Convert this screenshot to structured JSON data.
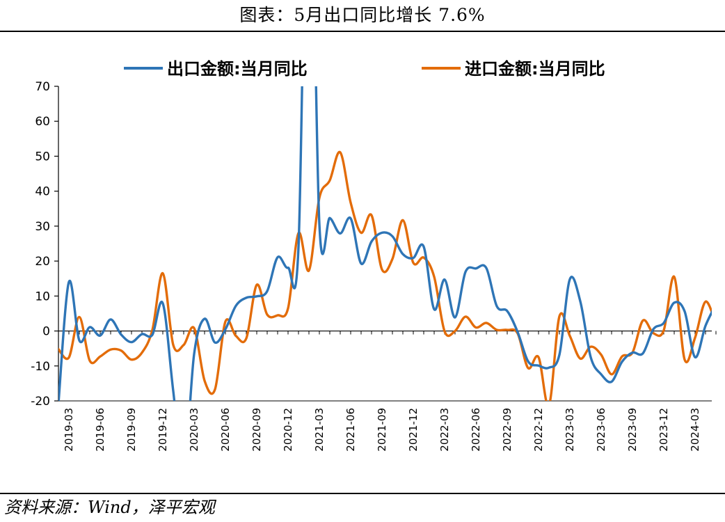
{
  "page": {
    "title": "图表：5月出口同比增长 7.6%",
    "source": "资料来源：Wind，泽平宏观"
  },
  "chart_data": {
    "type": "line",
    "title": "图表：5月出口同比增长 7.6%",
    "xlabel": "",
    "ylabel": "",
    "ylim": [
      -20,
      70
    ],
    "yticks": [
      -20,
      -10,
      0,
      10,
      20,
      30,
      40,
      50,
      60,
      70
    ],
    "grid": false,
    "legend_position": "top",
    "x": [
      "2019-02",
      "2019-03",
      "2019-04",
      "2019-05",
      "2019-06",
      "2019-07",
      "2019-08",
      "2019-09",
      "2019-10",
      "2019-11",
      "2019-12",
      "2020-01",
      "2020-02",
      "2020-03",
      "2020-04",
      "2020-05",
      "2020-06",
      "2020-07",
      "2020-08",
      "2020-09",
      "2020-10",
      "2020-11",
      "2020-12",
      "2021-01",
      "2021-02",
      "2021-03",
      "2021-04",
      "2021-05",
      "2021-06",
      "2021-07",
      "2021-08",
      "2021-09",
      "2021-10",
      "2021-11",
      "2021-12",
      "2022-01",
      "2022-02",
      "2022-03",
      "2022-04",
      "2022-05",
      "2022-06",
      "2022-07",
      "2022-08",
      "2022-09",
      "2022-10",
      "2022-11",
      "2022-12",
      "2023-01",
      "2023-02",
      "2023-03",
      "2023-04",
      "2023-05",
      "2023-06",
      "2023-07",
      "2023-08",
      "2023-09",
      "2023-10",
      "2023-11",
      "2023-12",
      "2024-01",
      "2024-02",
      "2024-03",
      "2024-04",
      "2024-05"
    ],
    "xticks": [
      "2019-03",
      "2019-06",
      "2019-09",
      "2019-12",
      "2020-03",
      "2020-06",
      "2020-09",
      "2020-12",
      "2021-03",
      "2021-06",
      "2021-09",
      "2021-12",
      "2022-03",
      "2022-06",
      "2022-09",
      "2022-12",
      "2023-03",
      "2023-06",
      "2023-09",
      "2023-12",
      "2024-03"
    ],
    "series": [
      {
        "name": "出口金额:当月同比",
        "color": "#2E75B6",
        "values": [
          -20.7,
          14.0,
          -2.7,
          1.1,
          -1.3,
          3.3,
          -1.0,
          -3.2,
          -0.9,
          -1.1,
          7.9,
          -17.2,
          -40.6,
          -6.6,
          3.5,
          -3.3,
          0.5,
          7.2,
          9.5,
          9.9,
          11.4,
          21.1,
          18.1,
          24.0,
          154.9,
          30.6,
          32.3,
          27.9,
          32.2,
          19.3,
          25.6,
          28.1,
          27.1,
          22.0,
          20.9,
          24.1,
          6.2,
          14.7,
          3.9,
          16.9,
          17.9,
          18.0,
          7.1,
          5.7,
          -0.3,
          -8.7,
          -9.9,
          -10.5,
          -6.8,
          14.8,
          8.5,
          -7.5,
          -12.4,
          -14.5,
          -8.8,
          -6.2,
          -6.4,
          0.5,
          2.3,
          8.1,
          5.6,
          -7.5,
          1.5,
          7.6
        ]
      },
      {
        "name": "进口金额:当月同比",
        "color": "#E36C09",
        "values": [
          -5.2,
          -7.6,
          4.0,
          -8.5,
          -7.3,
          -5.3,
          -5.6,
          -8.2,
          -6.2,
          0.3,
          16.5,
          -4.0,
          -4.0,
          0.8,
          -14.2,
          -16.7,
          2.7,
          -1.4,
          -2.1,
          13.2,
          4.7,
          4.5,
          6.5,
          28.0,
          17.3,
          38.1,
          43.1,
          51.1,
          36.7,
          28.1,
          33.1,
          17.6,
          20.6,
          31.7,
          19.5,
          21.0,
          15.5,
          -0.1,
          0.0,
          4.1,
          1.0,
          2.3,
          0.3,
          0.3,
          -0.7,
          -10.6,
          -7.5,
          -21.3,
          4.2,
          -1.4,
          -7.9,
          -4.5,
          -6.8,
          -12.4,
          -7.3,
          -6.2,
          3.0,
          -0.6,
          0.2,
          15.5,
          -8.2,
          -1.9,
          8.4,
          1.8
        ]
      }
    ]
  }
}
